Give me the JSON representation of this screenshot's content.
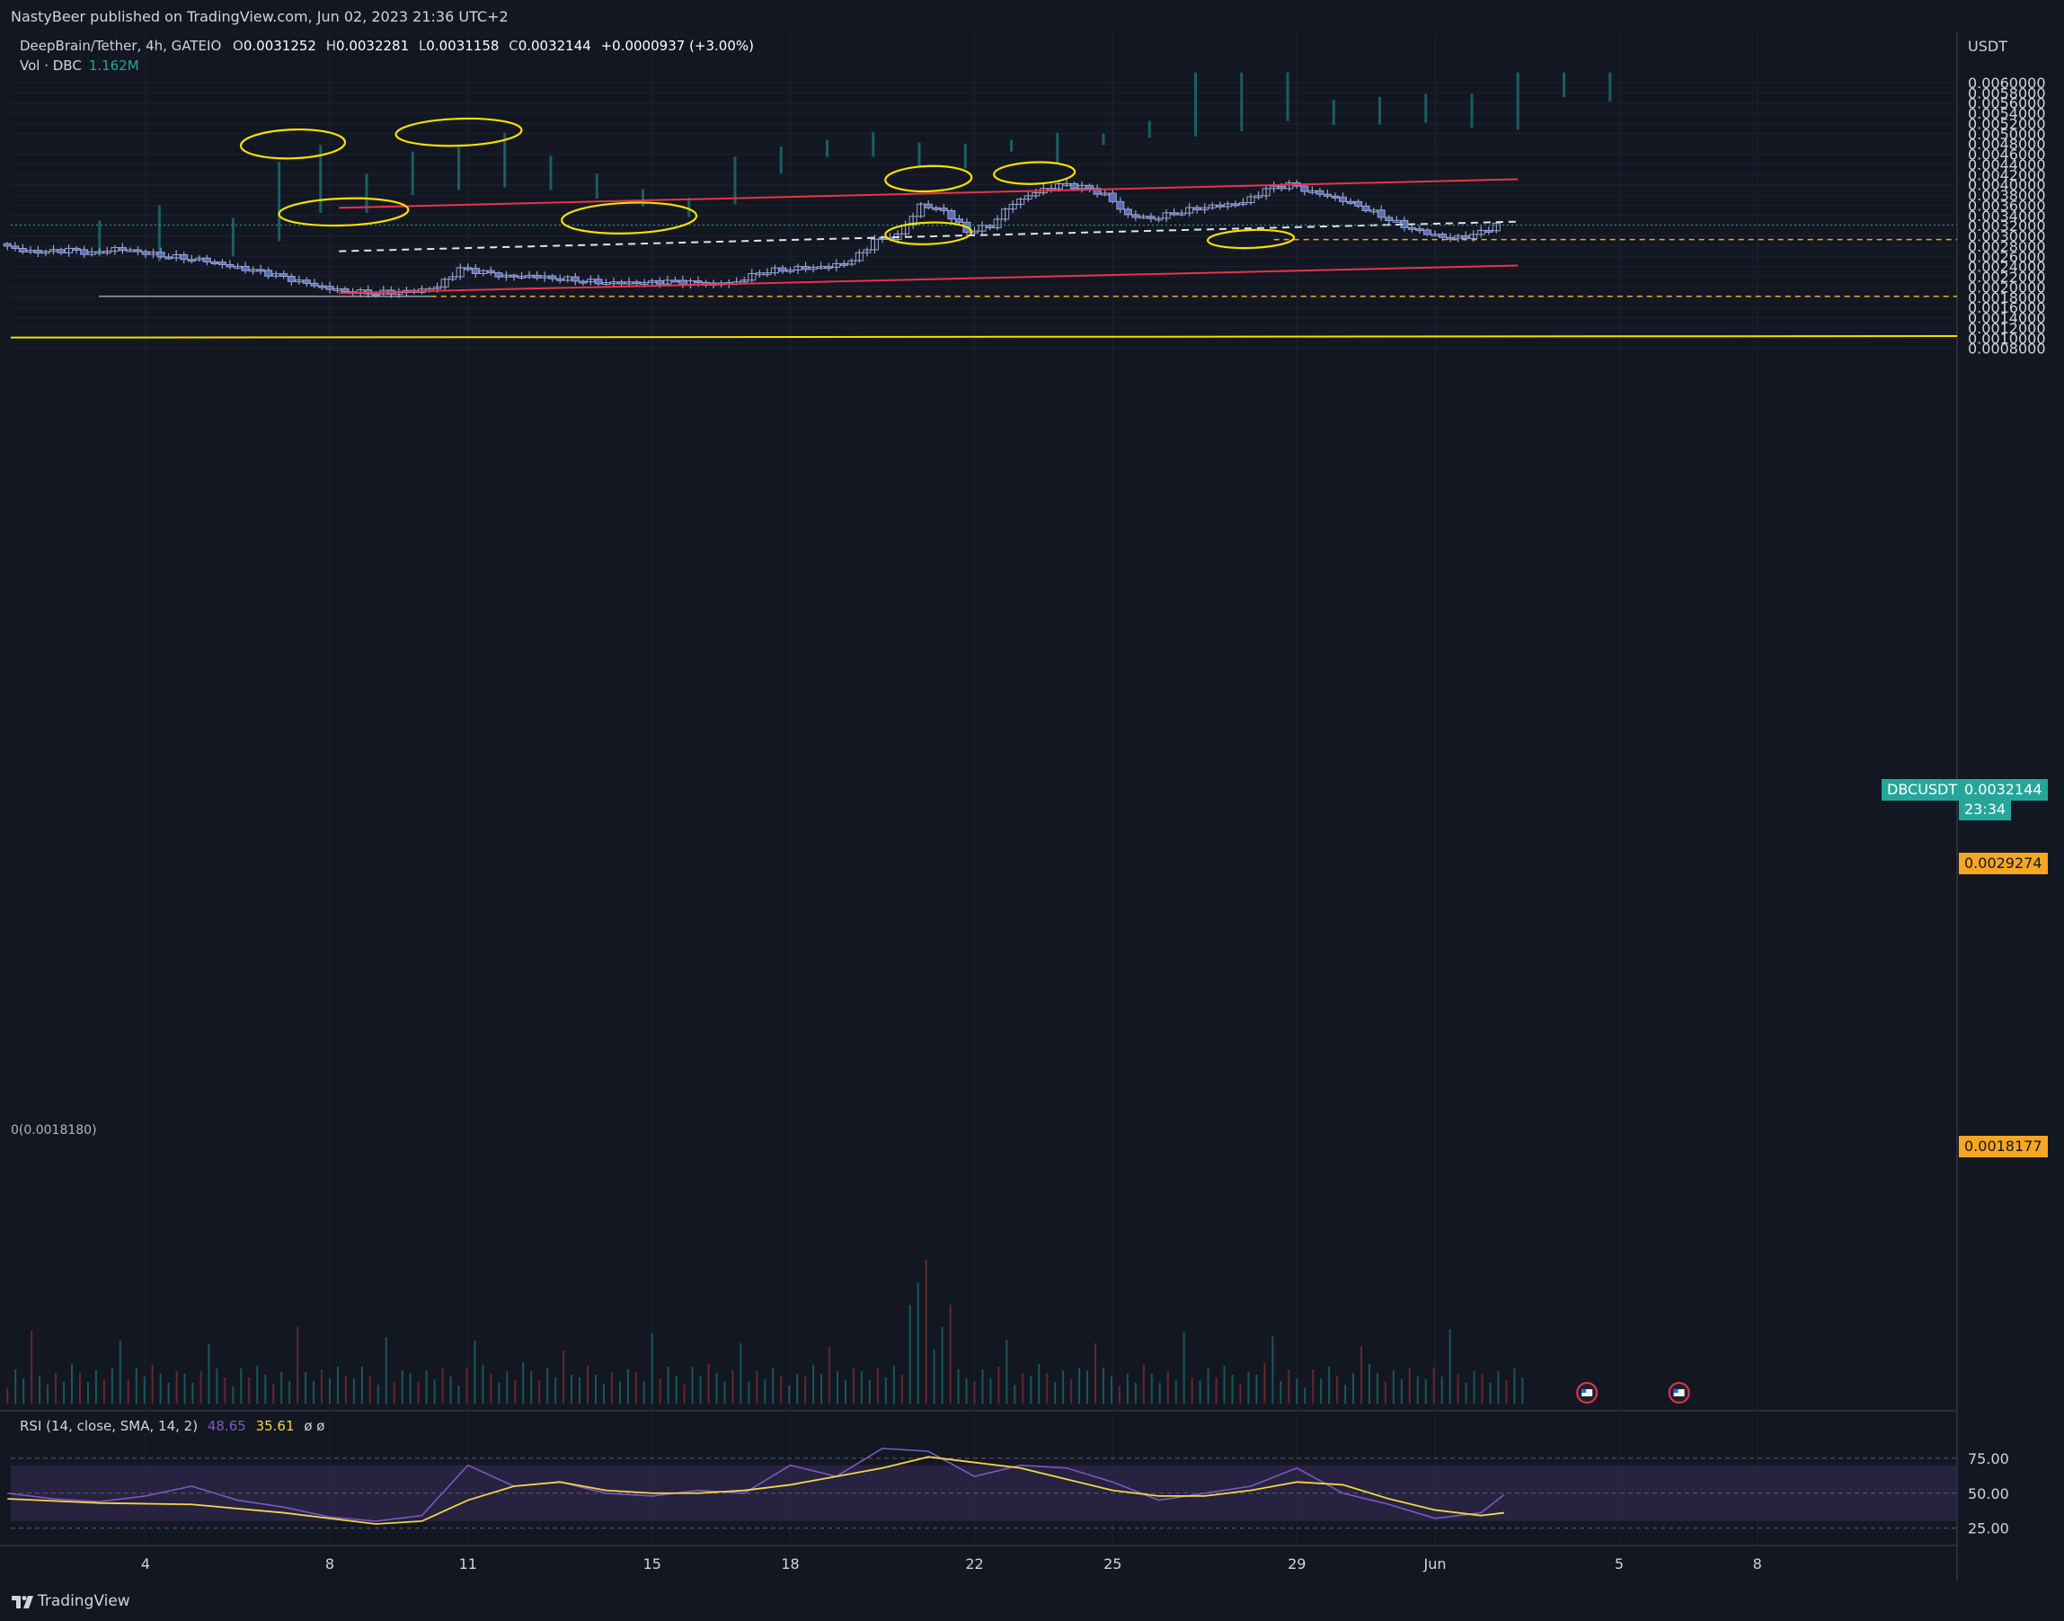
{
  "header": {
    "published_line": "NastyBeer published on TradingView.com, Jun 02, 2023 21:36 UTC+2"
  },
  "legend": {
    "symbol_line": "DeepBrain/Tether, 4h, GATEIO",
    "open_label": "O",
    "open": "0.0031252",
    "high_label": "H",
    "high": "0.0032281",
    "low_label": "L",
    "low": "0.0031158",
    "close_label": "C",
    "close": "0.0032144",
    "change": "+0.0000937 (+3.00%)",
    "vol_label": "Vol · DBC",
    "vol_value": "1.162M"
  },
  "rsi_legend": {
    "label": "RSI (14, close, SMA, 14, 2)",
    "rsi_value": "48.65",
    "sma_value": "35.61",
    "extra": "ø ø"
  },
  "price_axis": {
    "unit": "USDT",
    "symbol_tag": "DBCUSDT",
    "last_price": "0.0032144",
    "countdown": "23:34",
    "level_tag_1": "0.0029274",
    "level_tag_2": "0.0018177",
    "fib_label": "0(0.0018180)"
  },
  "footer": {
    "brand": "TradingView"
  },
  "colors": {
    "background": "#131722",
    "grid": "#1e2230",
    "candle": "#5b6db5",
    "wick": "#9aa4d4",
    "volume_up": "#1b5e63",
    "volume_down": "#6b2a35",
    "channel": "#e8344c",
    "annotation": "#f5e000",
    "rsi": "#7e57c2",
    "rsi_sma": "#f5d547",
    "last_price_tag": "#26a69a",
    "level_tag": "#f5a623"
  },
  "chart_data": {
    "type": "candlestick",
    "title": "DeepBrain/Tether, 4h, GATEIO",
    "y_unit": "USDT",
    "price_ticks": [
      "0.0060000",
      "0.0058000",
      "0.0056000",
      "0.0054000",
      "0.0052000",
      "0.0050000",
      "0.0048000",
      "0.0046000",
      "0.0044000",
      "0.0042000",
      "0.0040000",
      "0.0038000",
      "0.0036000",
      "0.0034000",
      "0.0032000",
      "0.0030000",
      "0.0028000",
      "0.0026000",
      "0.0024000",
      "0.0022000",
      "0.0020000",
      "0.0018000",
      "0.0016000",
      "0.0014000",
      "0.0012000",
      "0.0010000",
      "0.0008000"
    ],
    "price_tick_values": [
      0.006,
      0.0058,
      0.0056,
      0.0054,
      0.0052,
      0.005,
      0.0048,
      0.0046,
      0.0044,
      0.0042,
      0.004,
      0.0038,
      0.0036,
      0.0034,
      0.0032,
      0.003,
      0.0028,
      0.0026,
      0.0024,
      0.0022,
      0.002,
      0.0018,
      0.0016,
      0.0014,
      0.0012,
      0.001,
      0.0008
    ],
    "ylim": [
      0.0008,
      0.0062
    ],
    "x_ticks": [
      "4",
      "8",
      "11",
      "15",
      "18",
      "22",
      "25",
      "29",
      "Jun",
      "5",
      "8"
    ],
    "x_tick_days": [
      4,
      8,
      11,
      15,
      18,
      22,
      25,
      29,
      32,
      36,
      39
    ],
    "xlim_days": [
      1.0,
      42.9
    ],
    "rsi_ticks": [
      "75.00",
      "50.00",
      "25.00"
    ],
    "rsi_tick_values": [
      75,
      50,
      25
    ],
    "rsi_band": [
      30,
      70
    ],
    "close_path": [
      [
        1.0,
        0.00285
      ],
      [
        1.5,
        0.0027
      ],
      [
        2.0,
        0.00268
      ],
      [
        2.5,
        0.00272
      ],
      [
        3.0,
        0.00265
      ],
      [
        3.5,
        0.00275
      ],
      [
        4.0,
        0.0027
      ],
      [
        4.5,
        0.00262
      ],
      [
        5.0,
        0.00258
      ],
      [
        5.5,
        0.00252
      ],
      [
        6.0,
        0.0024
      ],
      [
        6.5,
        0.00232
      ],
      [
        7.0,
        0.00222
      ],
      [
        7.5,
        0.0021
      ],
      [
        8.0,
        0.002
      ],
      [
        8.5,
        0.00192
      ],
      [
        9.0,
        0.0019
      ],
      [
        9.5,
        0.0019
      ],
      [
        10.0,
        0.00192
      ],
      [
        10.5,
        0.002
      ],
      [
        11.0,
        0.00235
      ],
      [
        11.5,
        0.00228
      ],
      [
        12.0,
        0.0022
      ],
      [
        12.5,
        0.00222
      ],
      [
        13.0,
        0.00218
      ],
      [
        13.5,
        0.00215
      ],
      [
        14.0,
        0.0021
      ],
      [
        14.5,
        0.00208
      ],
      [
        15.0,
        0.00208
      ],
      [
        15.5,
        0.0021
      ],
      [
        16.0,
        0.00208
      ],
      [
        16.5,
        0.00205
      ],
      [
        17.0,
        0.0021
      ],
      [
        17.5,
        0.0023
      ],
      [
        18.0,
        0.00235
      ],
      [
        18.5,
        0.00238
      ],
      [
        19.0,
        0.0024
      ],
      [
        19.5,
        0.0025
      ],
      [
        20.0,
        0.0029
      ],
      [
        20.5,
        0.003
      ],
      [
        21.0,
        0.0036
      ],
      [
        21.5,
        0.0035
      ],
      [
        22.0,
        0.0031
      ],
      [
        22.5,
        0.0032
      ],
      [
        23.0,
        0.00365
      ],
      [
        23.5,
        0.00385
      ],
      [
        24.0,
        0.004
      ],
      [
        24.5,
        0.00395
      ],
      [
        25.0,
        0.0038
      ],
      [
        25.5,
        0.0034
      ],
      [
        26.0,
        0.00335
      ],
      [
        26.5,
        0.00345
      ],
      [
        27.0,
        0.00355
      ],
      [
        27.5,
        0.0036
      ],
      [
        28.0,
        0.00365
      ],
      [
        28.5,
        0.0039
      ],
      [
        29.0,
        0.004
      ],
      [
        29.5,
        0.00385
      ],
      [
        30.0,
        0.00375
      ],
      [
        30.5,
        0.0036
      ],
      [
        31.0,
        0.0034
      ],
      [
        31.5,
        0.0032
      ],
      [
        32.0,
        0.00305
      ],
      [
        32.5,
        0.00295
      ],
      [
        33.0,
        0.003
      ],
      [
        33.5,
        0.00321
      ]
    ],
    "volume_top_wicks": [
      [
        3,
        0.0033,
        0.0026
      ],
      [
        4.3,
        0.0036,
        0.0025
      ],
      [
        5.9,
        0.00335,
        0.0026
      ],
      [
        6.9,
        0.00445,
        0.0029
      ],
      [
        7.8,
        0.00478,
        0.00345
      ],
      [
        8.8,
        0.00422,
        0.00345
      ],
      [
        9.8,
        0.00465,
        0.0038
      ],
      [
        10.8,
        0.00473,
        0.0039
      ],
      [
        11.8,
        0.00502,
        0.00395
      ],
      [
        12.8,
        0.00457,
        0.0039
      ],
      [
        13.8,
        0.00422,
        0.00373
      ],
      [
        14.8,
        0.00392,
        0.00358
      ],
      [
        15.8,
        0.00375,
        0.00337
      ],
      [
        16.8,
        0.00455,
        0.00362
      ],
      [
        17.8,
        0.00475,
        0.00422
      ],
      [
        18.8,
        0.00488,
        0.00455
      ],
      [
        19.8,
        0.00503,
        0.00455
      ],
      [
        20.8,
        0.00483,
        0.00435
      ],
      [
        21.8,
        0.0048,
        0.00432
      ],
      [
        22.8,
        0.00488,
        0.00465
      ],
      [
        23.8,
        0.00502,
        0.0044
      ],
      [
        24.8,
        0.005,
        0.00478
      ],
      [
        25.8,
        0.00525,
        0.00492
      ],
      [
        26.8,
        0.0062,
        0.00495
      ],
      [
        27.8,
        0.0062,
        0.00505
      ],
      [
        28.8,
        0.0062,
        0.00525
      ],
      [
        29.8,
        0.00566,
        0.00517
      ],
      [
        30.8,
        0.00572,
        0.00518
      ],
      [
        31.8,
        0.00578,
        0.00522
      ],
      [
        32.8,
        0.00578,
        0.00512
      ],
      [
        33.8,
        0.0062,
        0.00508
      ],
      [
        34.8,
        0.0062,
        0.00572
      ],
      [
        35.8,
        0.0062,
        0.00563
      ]
    ],
    "rsi_path": [
      [
        1,
        50
      ],
      [
        2,
        46
      ],
      [
        3,
        44
      ],
      [
        4,
        48
      ],
      [
        5,
        55
      ],
      [
        6,
        45
      ],
      [
        7,
        40
      ],
      [
        8,
        33
      ],
      [
        9,
        30
      ],
      [
        10,
        34
      ],
      [
        11,
        70
      ],
      [
        12,
        55
      ],
      [
        13,
        58
      ],
      [
        14,
        50
      ],
      [
        15,
        48
      ],
      [
        16,
        52
      ],
      [
        17,
        50
      ],
      [
        18,
        70
      ],
      [
        19,
        62
      ],
      [
        20,
        82
      ],
      [
        21,
        80
      ],
      [
        22,
        62
      ],
      [
        23,
        70
      ],
      [
        24,
        68
      ],
      [
        25,
        58
      ],
      [
        26,
        45
      ],
      [
        27,
        50
      ],
      [
        28,
        55
      ],
      [
        29,
        68
      ],
      [
        30,
        50
      ],
      [
        31,
        42
      ],
      [
        32,
        32
      ],
      [
        33,
        36
      ],
      [
        33.5,
        49
      ]
    ],
    "rsi_sma_path": [
      [
        1,
        46
      ],
      [
        3,
        43
      ],
      [
        5,
        42
      ],
      [
        7,
        36
      ],
      [
        9,
        28
      ],
      [
        10,
        30
      ],
      [
        11,
        45
      ],
      [
        12,
        55
      ],
      [
        13,
        58
      ],
      [
        14,
        52
      ],
      [
        15,
        50
      ],
      [
        16,
        50
      ],
      [
        17,
        52
      ],
      [
        18,
        56
      ],
      [
        19,
        62
      ],
      [
        20,
        68
      ],
      [
        21,
        76
      ],
      [
        22,
        72
      ],
      [
        23,
        68
      ],
      [
        24,
        60
      ],
      [
        25,
        52
      ],
      [
        26,
        48
      ],
      [
        27,
        48
      ],
      [
        28,
        52
      ],
      [
        29,
        58
      ],
      [
        30,
        56
      ],
      [
        31,
        46
      ],
      [
        32,
        38
      ],
      [
        33,
        34
      ],
      [
        33.5,
        36
      ]
    ],
    "channel_upper": [
      [
        8.2,
        0.00355
      ],
      [
        33.8,
        0.00411
      ]
    ],
    "channel_lower": [
      [
        8.2,
        0.00188
      ],
      [
        33.8,
        0.00242
      ]
    ],
    "channel_mid": [
      [
        8.2,
        0.0027
      ],
      [
        33.8,
        0.00328
      ]
    ],
    "levels": [
      0.0029274,
      0.0018177
    ],
    "last_price": 0.0032144
  }
}
